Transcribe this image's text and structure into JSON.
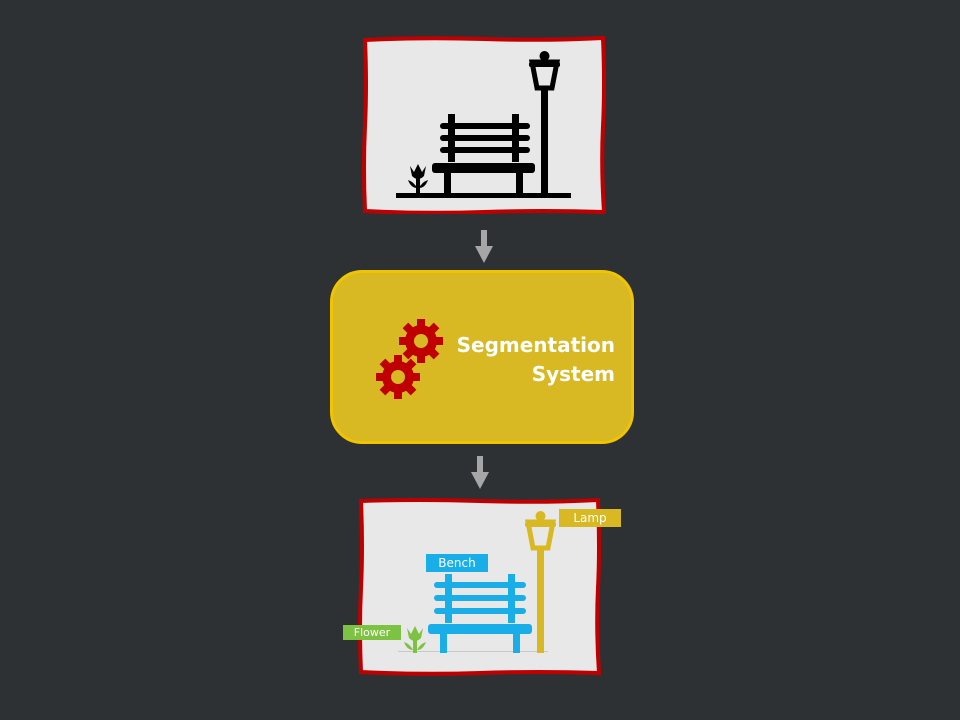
{
  "diagram": {
    "input_image": {
      "description_icon": "park-bench-lamp-flower-icon"
    },
    "arrows": [
      "arrow-down-icon",
      "arrow-down-icon"
    ],
    "process": {
      "title_line1": "Segmentation",
      "title_line2": "System",
      "icon": "gears-icon"
    },
    "output_labels": {
      "lamp": "Lamp",
      "bench": "Bench",
      "flower": "Flower"
    }
  },
  "colors": {
    "background": "#2e3134",
    "frame_border": "#c00000",
    "frame_fill": "#e8e8e8",
    "process_fill": "#d8b823",
    "gear": "#c00000",
    "lamp": "#d8b823",
    "bench": "#1aaee8",
    "flower": "#7dc242"
  }
}
